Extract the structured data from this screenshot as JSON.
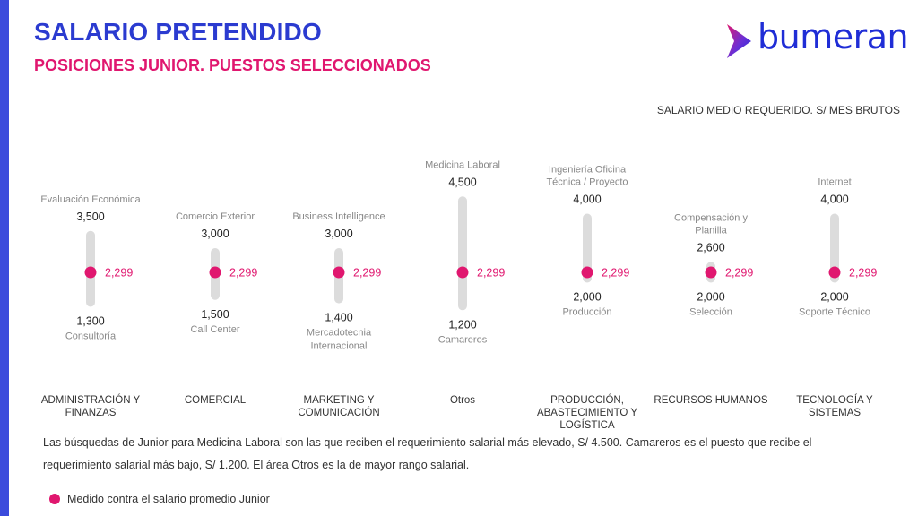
{
  "header": {
    "title": "SALARIO PRETENDIDO",
    "subtitle": "POSICIONES JUNIOR. PUESTOS SELECCIONADOS",
    "logo_text": "bumeran"
  },
  "colors": {
    "title": "#2b3bd0",
    "accent": "#e0176f",
    "bar": "#dcdcdc",
    "logo_gradient": [
      "#e0176f",
      "#6b2fd6",
      "#1f2dd6"
    ]
  },
  "note": "Las búsquedas de Junior para Medicina Laboral son las que reciben el requerimiento salarial más elevado, S/ 4.500. Camareros es el puesto que recibe el requerimiento salarial más bajo, S/ 1.200. El área Otros es la de mayor rango salarial.",
  "legend": {
    "label": "Medido contra el salario promedio Junior"
  },
  "chart_data": {
    "type": "range",
    "ylabel": "SALARIO MEDIO REQUERIDO. S/ MES BRUTOS",
    "ylim": [
      1200,
      4500
    ],
    "reference": {
      "value": 2299,
      "label": "2,299"
    },
    "categories": [
      {
        "name": "ADMINISTRACIÓN Y FINANZAS",
        "min": 1300,
        "max": 3500,
        "min_label": "1,300",
        "max_label": "3,500",
        "min_position": "Consultoría",
        "max_position": "Evaluación Económica"
      },
      {
        "name": "COMERCIAL",
        "min": 1500,
        "max": 3000,
        "min_label": "1,500",
        "max_label": "3,000",
        "min_position": "Call Center",
        "max_position": "Comercio Exterior"
      },
      {
        "name": "MARKETING Y COMUNICACIÓN",
        "min": 1400,
        "max": 3000,
        "min_label": "1,400",
        "max_label": "3,000",
        "min_position": "Mercadotecnia Internacional",
        "max_position": "Business Intelligence"
      },
      {
        "name": "Otros",
        "min": 1200,
        "max": 4500,
        "min_label": "1,200",
        "max_label": "4,500",
        "min_position": "Camareros",
        "max_position": "Medicina Laboral"
      },
      {
        "name": "PRODUCCIÓN, ABASTECIMIENTO Y LOGÍSTICA",
        "min": 2000,
        "max": 4000,
        "min_label": "2,000",
        "max_label": "4,000",
        "min_position": "Producción",
        "max_position": "Ingeniería Oficina Técnica / Proyecto"
      },
      {
        "name": "RECURSOS HUMANOS",
        "min": 2000,
        "max": 2600,
        "min_label": "2,000",
        "max_label": "2,600",
        "min_position": "Selección",
        "max_position": "Compensación y Planilla"
      },
      {
        "name": "TECNOLOGÍA Y SISTEMAS",
        "min": 2000,
        "max": 4000,
        "min_label": "2,000",
        "max_label": "4,000",
        "min_position": "Soporte Técnico",
        "max_position": "Internet"
      }
    ]
  }
}
